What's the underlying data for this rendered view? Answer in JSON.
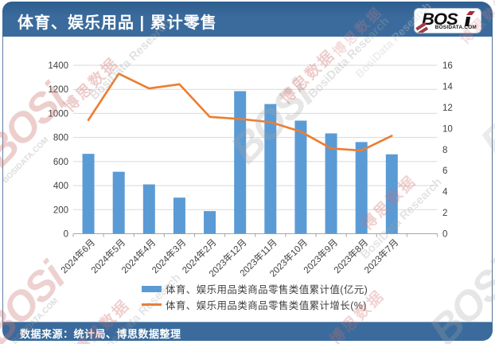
{
  "header": {
    "title": "体育、娱乐用品 | 累计零售"
  },
  "logo": {
    "wordmark_bos": "BOS",
    "wordmark_i": "i",
    "domain": "BOSIDATA.COM"
  },
  "footer": {
    "source": "数据来源：统计局、博思数据整理"
  },
  "watermark": {
    "logo_text": "BOSi",
    "domain_text": "BOSIDATA.COM",
    "cn_text": "博思数据",
    "en_text": "BosiData Research"
  },
  "chart_data": {
    "type": "bar+line",
    "categories": [
      "2024年6月",
      "2024年5月",
      "2024年4月",
      "2024年3月",
      "2024年2月",
      "2023年12月",
      "2023年11月",
      "2023年10月",
      "2023年9月",
      "2023年8月",
      "2023年7月"
    ],
    "series": [
      {
        "name": "体育、娱乐用品类商品零售类值累计值(亿元)",
        "type": "bar",
        "axis": "left",
        "values": [
          664,
          515,
          410,
          300,
          188,
          1185,
          1078,
          940,
          834,
          762,
          660
        ]
      },
      {
        "name": "体育、娱乐用品类商品零售类值累计增长(%)",
        "type": "line",
        "axis": "right",
        "values": [
          10.8,
          15.2,
          13.8,
          14.2,
          11.1,
          10.9,
          10.6,
          9.7,
          8.1,
          7.9,
          9.3
        ]
      }
    ],
    "legend": {
      "bar": "体育、娱乐用品类商品零售类值累计值(亿元)",
      "line": "体育、娱乐用品类商品零售类值累计增长(%)"
    },
    "left_axis": {
      "min": 0,
      "max": 1400,
      "step": 200,
      "ticks": [
        "0",
        "200",
        "400",
        "600",
        "800",
        "1000",
        "1200",
        "1400"
      ]
    },
    "right_axis": {
      "min": 0,
      "max": 16,
      "step": 2,
      "ticks": [
        "0",
        "2",
        "4",
        "6",
        "8",
        "10",
        "12",
        "14",
        "16"
      ]
    },
    "colors": {
      "bar": "#5B9BD5",
      "line": "#ED7D31",
      "grid": "#D9D9D9",
      "axis": "#A6A6A6",
      "tick_label": "#404040"
    },
    "grid": true,
    "legend_position": "bottom",
    "empty_trailing_slots": 1
  }
}
